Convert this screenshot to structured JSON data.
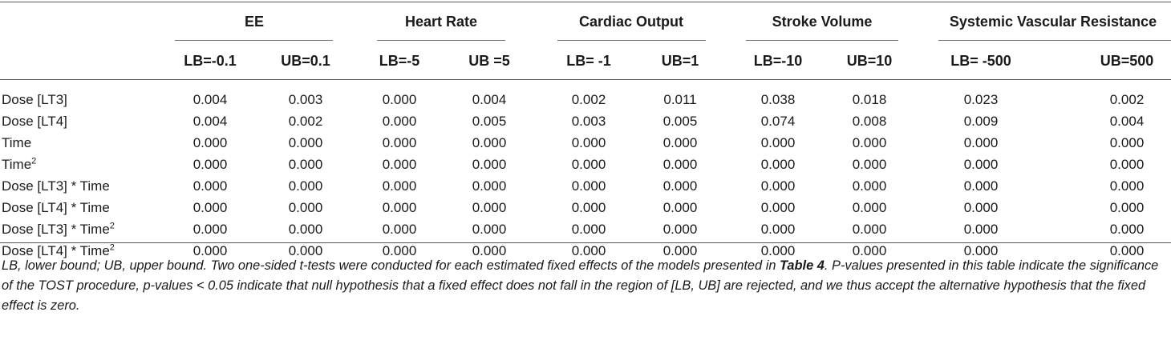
{
  "groups": [
    "EE",
    "Heart Rate",
    "Cardiac Output",
    "Stroke Volume",
    "Systemic Vascular Resistance"
  ],
  "subheaders": [
    "LB=-0.1",
    "UB=0.1",
    "LB=-5",
    "UB =5",
    "LB= -1",
    "UB=1",
    "LB=-10",
    "UB=10",
    "LB= -500",
    "UB=500"
  ],
  "rows": [
    {
      "label": "Dose [LT3]",
      "sup": "",
      "values": [
        "0.004",
        "0.003",
        "0.000",
        "0.004",
        "0.002",
        "0.011",
        "0.038",
        "0.018",
        "0.023",
        "0.002"
      ]
    },
    {
      "label": "Dose [LT4]",
      "sup": "",
      "values": [
        "0.004",
        "0.002",
        "0.000",
        "0.005",
        "0.003",
        "0.005",
        "0.074",
        "0.008",
        "0.009",
        "0.004"
      ]
    },
    {
      "label": "Time",
      "sup": "",
      "values": [
        "0.000",
        "0.000",
        "0.000",
        "0.000",
        "0.000",
        "0.000",
        "0.000",
        "0.000",
        "0.000",
        "0.000"
      ]
    },
    {
      "label": "Time",
      "sup": "2",
      "values": [
        "0.000",
        "0.000",
        "0.000",
        "0.000",
        "0.000",
        "0.000",
        "0.000",
        "0.000",
        "0.000",
        "0.000"
      ]
    },
    {
      "label": "Dose [LT3] * Time",
      "sup": "",
      "values": [
        "0.000",
        "0.000",
        "0.000",
        "0.000",
        "0.000",
        "0.000",
        "0.000",
        "0.000",
        "0.000",
        "0.000"
      ]
    },
    {
      "label": "Dose [LT4] * Time",
      "sup": "",
      "values": [
        "0.000",
        "0.000",
        "0.000",
        "0.000",
        "0.000",
        "0.000",
        "0.000",
        "0.000",
        "0.000",
        "0.000"
      ]
    },
    {
      "label": "Dose [LT3] * Time",
      "sup": "2",
      "values": [
        "0.000",
        "0.000",
        "0.000",
        "0.000",
        "0.000",
        "0.000",
        "0.000",
        "0.000",
        "0.000",
        "0.000"
      ]
    },
    {
      "label": "Dose [LT4] * Time",
      "sup": "2",
      "values": [
        "0.000",
        "0.000",
        "0.000",
        "0.000",
        "0.000",
        "0.000",
        "0.000",
        "0.000",
        "0.000",
        "0.000"
      ]
    }
  ],
  "footnote": {
    "part1": "LB, lower bound; UB, upper bound. Two one-sided t-tests were conducted for each estimated fixed effects of the models presented in ",
    "ref": "Table 4",
    "part2": ". P-values presented in this table indicate the significance of the TOST procedure, p-values < 0.05 indicate that null hypothesis that a fixed effect does not fall in the region of [LB, UB] are rejected, and we thus accept the alternative hypothesis that the fixed effect is zero."
  }
}
